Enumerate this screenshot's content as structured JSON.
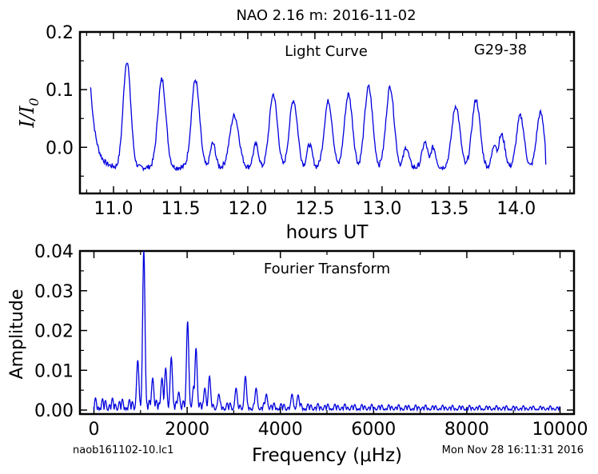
{
  "title": "NAO 2.16 m:  2016-11-02",
  "footer_left": "naob161102-10.lc1",
  "footer_right": "Mon Nov 28 16:11:31 2016",
  "line_color": "#0000dd",
  "chart_data": [
    {
      "type": "line",
      "annotation": "Light Curve",
      "object_label": "G29-38",
      "xlabel": "hours UT",
      "ylabel": "I/I0",
      "xlim": [
        10.75,
        14.43
      ],
      "ylim": [
        -0.08,
        0.2
      ],
      "xticks": [
        "11.0",
        "11.5",
        "12.0",
        "12.5",
        "13.0",
        "13.5",
        "14.0"
      ],
      "yticks": [
        "0.2",
        "0.1",
        "0.0"
      ],
      "grid": false,
      "start_level": 0.104,
      "end_level": -0.03,
      "baseline": -0.035,
      "x_range": [
        10.83,
        14.22
      ],
      "peaks": [
        {
          "x": 11.1,
          "y": 0.15,
          "w": 0.028
        },
        {
          "x": 11.36,
          "y": 0.118,
          "w": 0.03
        },
        {
          "x": 11.61,
          "y": 0.117,
          "w": 0.03
        },
        {
          "x": 11.74,
          "y": 0.007,
          "w": 0.02
        },
        {
          "x": 11.9,
          "y": 0.055,
          "w": 0.034
        },
        {
          "x": 12.06,
          "y": 0.005,
          "w": 0.02
        },
        {
          "x": 12.19,
          "y": 0.092,
          "w": 0.03
        },
        {
          "x": 12.34,
          "y": 0.082,
          "w": 0.03
        },
        {
          "x": 12.46,
          "y": 0.005,
          "w": 0.02
        },
        {
          "x": 12.6,
          "y": 0.08,
          "w": 0.03
        },
        {
          "x": 12.75,
          "y": 0.092,
          "w": 0.03
        },
        {
          "x": 12.9,
          "y": 0.105,
          "w": 0.03
        },
        {
          "x": 13.02,
          "y": 0.0,
          "w": 0.02
        },
        {
          "x": 13.06,
          "y": 0.105,
          "w": 0.03
        },
        {
          "x": 13.18,
          "y": 0.0,
          "w": 0.02
        },
        {
          "x": 13.32,
          "y": 0.008,
          "w": 0.022
        },
        {
          "x": 13.38,
          "y": 0.0,
          "w": 0.02
        },
        {
          "x": 13.55,
          "y": 0.072,
          "w": 0.03
        },
        {
          "x": 13.7,
          "y": 0.083,
          "w": 0.03
        },
        {
          "x": 13.84,
          "y": 0.007,
          "w": 0.02
        },
        {
          "x": 13.89,
          "y": 0.022,
          "w": 0.025
        },
        {
          "x": 14.03,
          "y": 0.055,
          "w": 0.028
        },
        {
          "x": 14.18,
          "y": 0.06,
          "w": 0.028
        }
      ]
    },
    {
      "type": "line",
      "annotation": "Fourier Transform",
      "xlabel": "Frequency (μHz)",
      "ylabel": "Amplitude",
      "xlim": [
        -300,
        10300
      ],
      "ylim": [
        -0.001,
        0.04
      ],
      "xticks": [
        "0",
        "2000",
        "4000",
        "6000",
        "8000",
        "10000"
      ],
      "yticks": [
        "0.04",
        "0.03",
        "0.02",
        "0.01",
        "0.00"
      ],
      "grid": false,
      "x_range": [
        0,
        10000
      ],
      "peaks": [
        {
          "x": 1070,
          "y": 0.04,
          "w": 25
        },
        {
          "x": 940,
          "y": 0.0125,
          "w": 25
        },
        {
          "x": 1260,
          "y": 0.008,
          "w": 25
        },
        {
          "x": 1460,
          "y": 0.008,
          "w": 25
        },
        {
          "x": 1540,
          "y": 0.0105,
          "w": 25
        },
        {
          "x": 1660,
          "y": 0.0132,
          "w": 25
        },
        {
          "x": 1820,
          "y": 0.0045,
          "w": 25
        },
        {
          "x": 2010,
          "y": 0.0222,
          "w": 25
        },
        {
          "x": 2140,
          "y": 0.006,
          "w": 25
        },
        {
          "x": 2190,
          "y": 0.0155,
          "w": 25
        },
        {
          "x": 2380,
          "y": 0.0055,
          "w": 25
        },
        {
          "x": 2480,
          "y": 0.0085,
          "w": 25
        },
        {
          "x": 2680,
          "y": 0.004,
          "w": 25
        },
        {
          "x": 3050,
          "y": 0.0055,
          "w": 25
        },
        {
          "x": 3250,
          "y": 0.0085,
          "w": 25
        },
        {
          "x": 3480,
          "y": 0.0055,
          "w": 25
        },
        {
          "x": 3700,
          "y": 0.004,
          "w": 25
        },
        {
          "x": 4250,
          "y": 0.004,
          "w": 25
        },
        {
          "x": 4380,
          "y": 0.0038,
          "w": 25
        }
      ]
    }
  ]
}
